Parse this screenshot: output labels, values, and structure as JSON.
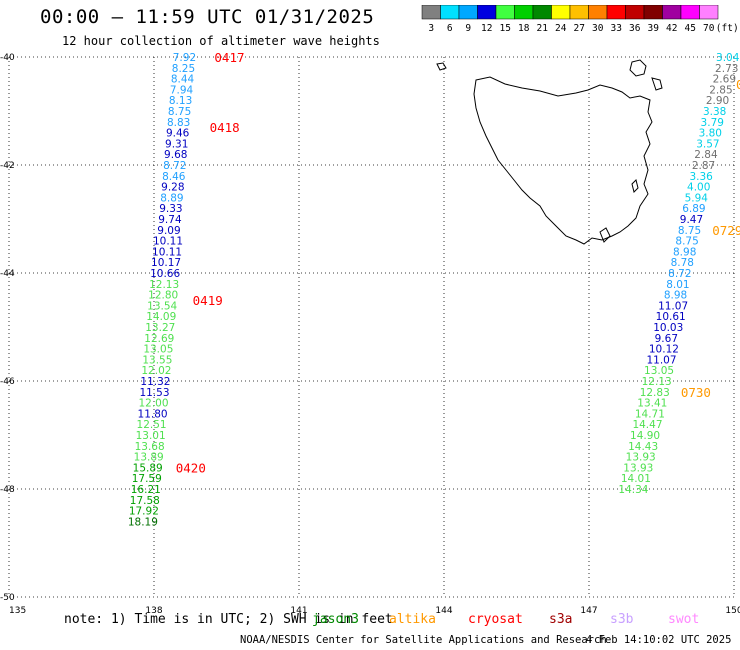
{
  "header": {
    "title": "00:00 – 11:59 UTC 01/31/2025",
    "subtitle": "12 hour collection of altimeter wave heights"
  },
  "colorbar": {
    "bins": [
      {
        "label": "3",
        "color": "#808080"
      },
      {
        "label": "6",
        "color": "#00e0ff"
      },
      {
        "label": "9",
        "color": "#00a8ff"
      },
      {
        "label": "12",
        "color": "#0000e0"
      },
      {
        "label": "15",
        "color": "#40ff40"
      },
      {
        "label": "18",
        "color": "#00d000"
      },
      {
        "label": "21",
        "color": "#008800"
      },
      {
        "label": "24",
        "color": "#ffff00"
      },
      {
        "label": "27",
        "color": "#ffc000"
      },
      {
        "label": "30",
        "color": "#ff8000"
      },
      {
        "label": "33",
        "color": "#ff0000"
      },
      {
        "label": "36",
        "color": "#c00000"
      },
      {
        "label": "39",
        "color": "#800000"
      },
      {
        "label": "42",
        "color": "#a000a0"
      },
      {
        "label": "45",
        "color": "#ff00ff"
      },
      {
        "label": "70",
        "color": "#ff80ff"
      },
      {
        "label": "(ft)",
        "color": "#000000"
      }
    ]
  },
  "chart_data": {
    "type": "scatter",
    "title": "00:00 – 11:59 UTC 01/31/2025",
    "subtitle": "12 hour collection of altimeter wave heights",
    "xlim": [
      135,
      150
    ],
    "ylim": [
      -50,
      -40
    ],
    "x_ticks": [
      "135",
      "138",
      "141",
      "144",
      "147",
      "150"
    ],
    "y_ticks": [
      "-40",
      "-42",
      "-44",
      "-46",
      "-48",
      "-50"
    ],
    "grid": true,
    "units": "ft",
    "tracks": [
      {
        "color_by_value": true,
        "points": [
          {
            "lon": 138.63,
            "lat": -40.0,
            "value": "7.92"
          },
          {
            "lon": 138.61,
            "lat": -40.2,
            "value": "8.25"
          },
          {
            "lon": 138.59,
            "lat": -40.4,
            "value": "8.44"
          },
          {
            "lon": 138.57,
            "lat": -40.6,
            "value": "7.94"
          },
          {
            "lon": 138.55,
            "lat": -40.8,
            "value": "8.13"
          },
          {
            "lon": 138.53,
            "lat": -41.0,
            "value": "8.75"
          },
          {
            "lon": 138.51,
            "lat": -41.2,
            "value": "8.83"
          },
          {
            "lon": 138.49,
            "lat": -41.4,
            "value": "9.46"
          },
          {
            "lon": 138.47,
            "lat": -41.6,
            "value": "9.31"
          },
          {
            "lon": 138.45,
            "lat": -41.8,
            "value": "9.68"
          },
          {
            "lon": 138.43,
            "lat": -42.0,
            "value": "8.72"
          },
          {
            "lon": 138.41,
            "lat": -42.2,
            "value": "8.46"
          },
          {
            "lon": 138.39,
            "lat": -42.4,
            "value": "9.28"
          },
          {
            "lon": 138.37,
            "lat": -42.6,
            "value": "8.89"
          },
          {
            "lon": 138.35,
            "lat": -42.8,
            "value": "9.33"
          },
          {
            "lon": 138.33,
            "lat": -43.0,
            "value": "9.74"
          },
          {
            "lon": 138.31,
            "lat": -43.2,
            "value": "9.09"
          },
          {
            "lon": 138.29,
            "lat": -43.4,
            "value": "10.11"
          },
          {
            "lon": 138.27,
            "lat": -43.6,
            "value": "10.11"
          },
          {
            "lon": 138.25,
            "lat": -43.8,
            "value": "10.17"
          },
          {
            "lon": 138.23,
            "lat": -44.0,
            "value": "10.66"
          },
          {
            "lon": 138.21,
            "lat": -44.2,
            "value": "12.13"
          },
          {
            "lon": 138.19,
            "lat": -44.4,
            "value": "12.80"
          },
          {
            "lon": 138.17,
            "lat": -44.6,
            "value": "13.54"
          },
          {
            "lon": 138.15,
            "lat": -44.8,
            "value": "14.09"
          },
          {
            "lon": 138.13,
            "lat": -45.0,
            "value": "13.27"
          },
          {
            "lon": 138.11,
            "lat": -45.2,
            "value": "12.69"
          },
          {
            "lon": 138.09,
            "lat": -45.4,
            "value": "13.05"
          },
          {
            "lon": 138.07,
            "lat": -45.6,
            "value": "13.55"
          },
          {
            "lon": 138.05,
            "lat": -45.8,
            "value": "12.02"
          },
          {
            "lon": 138.03,
            "lat": -46.0,
            "value": "11.32"
          },
          {
            "lon": 138.01,
            "lat": -46.2,
            "value": "11.53"
          },
          {
            "lon": 137.99,
            "lat": -46.4,
            "value": "12.00"
          },
          {
            "lon": 137.97,
            "lat": -46.6,
            "value": "11.80"
          },
          {
            "lon": 137.95,
            "lat": -46.8,
            "value": "12.51"
          },
          {
            "lon": 137.93,
            "lat": -47.0,
            "value": "13.01"
          },
          {
            "lon": 137.91,
            "lat": -47.2,
            "value": "13.68"
          },
          {
            "lon": 137.89,
            "lat": -47.4,
            "value": "13.89"
          },
          {
            "lon": 137.87,
            "lat": -47.6,
            "value": "15.89"
          },
          {
            "lon": 137.85,
            "lat": -47.8,
            "value": "17.59"
          },
          {
            "lon": 137.83,
            "lat": -48.0,
            "value": "16.21"
          },
          {
            "lon": 137.81,
            "lat": -48.2,
            "value": "17.58"
          },
          {
            "lon": 137.79,
            "lat": -48.4,
            "value": "17.92"
          },
          {
            "lon": 137.77,
            "lat": -48.6,
            "value": "18.19"
          }
        ]
      },
      {
        "color_by_value": true,
        "points": [
          {
            "lon": 149.87,
            "lat": -40.0,
            "value": "3.04"
          },
          {
            "lon": 149.85,
            "lat": -40.2,
            "value": "2.73"
          },
          {
            "lon": 149.8,
            "lat": -40.4,
            "value": "2.69"
          },
          {
            "lon": 149.73,
            "lat": -40.6,
            "value": "2.85"
          },
          {
            "lon": 149.66,
            "lat": -40.8,
            "value": "2.90"
          },
          {
            "lon": 149.6,
            "lat": -41.0,
            "value": "3.38"
          },
          {
            "lon": 149.55,
            "lat": -41.2,
            "value": "3.79"
          },
          {
            "lon": 149.51,
            "lat": -41.4,
            "value": "3.80"
          },
          {
            "lon": 149.46,
            "lat": -41.6,
            "value": "3.57"
          },
          {
            "lon": 149.42,
            "lat": -41.8,
            "value": "2.84"
          },
          {
            "lon": 149.37,
            "lat": -42.0,
            "value": "2.87"
          },
          {
            "lon": 149.32,
            "lat": -42.2,
            "value": "3.36"
          },
          {
            "lon": 149.27,
            "lat": -42.4,
            "value": "4.00"
          },
          {
            "lon": 149.22,
            "lat": -42.6,
            "value": "5.94"
          },
          {
            "lon": 149.17,
            "lat": -42.8,
            "value": "6.89"
          },
          {
            "lon": 149.12,
            "lat": -43.0,
            "value": "9.47"
          },
          {
            "lon": 149.08,
            "lat": -43.2,
            "value": "8.75"
          },
          {
            "lon": 149.03,
            "lat": -43.4,
            "value": "8.75"
          },
          {
            "lon": 148.98,
            "lat": -43.6,
            "value": "8.98"
          },
          {
            "lon": 148.93,
            "lat": -43.8,
            "value": "8.78"
          },
          {
            "lon": 148.88,
            "lat": -44.0,
            "value": "8.72"
          },
          {
            "lon": 148.84,
            "lat": -44.2,
            "value": "8.01"
          },
          {
            "lon": 148.79,
            "lat": -44.4,
            "value": "8.98"
          },
          {
            "lon": 148.74,
            "lat": -44.6,
            "value": "11.07"
          },
          {
            "lon": 148.69,
            "lat": -44.8,
            "value": "10.61"
          },
          {
            "lon": 148.64,
            "lat": -45.0,
            "value": "10.03"
          },
          {
            "lon": 148.6,
            "lat": -45.2,
            "value": "9.67"
          },
          {
            "lon": 148.55,
            "lat": -45.4,
            "value": "10.12"
          },
          {
            "lon": 148.5,
            "lat": -45.6,
            "value": "11.07"
          },
          {
            "lon": 148.45,
            "lat": -45.8,
            "value": "13.05"
          },
          {
            "lon": 148.4,
            "lat": -46.0,
            "value": "12.13"
          },
          {
            "lon": 148.36,
            "lat": -46.2,
            "value": "12.83"
          },
          {
            "lon": 148.31,
            "lat": -46.4,
            "value": "13.41"
          },
          {
            "lon": 148.26,
            "lat": -46.6,
            "value": "14.71"
          },
          {
            "lon": 148.21,
            "lat": -46.8,
            "value": "14.47"
          },
          {
            "lon": 148.16,
            "lat": -47.0,
            "value": "14.90"
          },
          {
            "lon": 148.12,
            "lat": -47.2,
            "value": "14.43"
          },
          {
            "lon": 148.07,
            "lat": -47.4,
            "value": "13.93"
          },
          {
            "lon": 148.02,
            "lat": -47.6,
            "value": "13.93"
          },
          {
            "lon": 147.97,
            "lat": -47.8,
            "value": "14.01"
          },
          {
            "lon": 147.92,
            "lat": -48.0,
            "value": "14.34"
          }
        ]
      }
    ],
    "time_labels": [
      {
        "text": "0417",
        "lon": 139.25,
        "lat": -40.0,
        "color": "#ff0000"
      },
      {
        "text": "0418",
        "lon": 139.15,
        "lat": -41.3,
        "color": "#ff0000"
      },
      {
        "text": "0419",
        "lon": 138.8,
        "lat": -44.5,
        "color": "#ff0000"
      },
      {
        "text": "0420",
        "lon": 138.45,
        "lat": -47.6,
        "color": "#ff0000"
      },
      {
        "text": "0729",
        "lon": 149.55,
        "lat": -43.2,
        "color": "#ff9900"
      },
      {
        "text": "0730",
        "lon": 148.9,
        "lat": -46.2,
        "color": "#ff9900"
      }
    ],
    "clipped_label": {
      "text": "0",
      "color": "#ff9900"
    }
  },
  "footer": {
    "note_prefix": "note: 1) Time is in UTC; 2) SWH is in feet",
    "satellites": [
      {
        "name": "jason3",
        "color": "#008800"
      },
      {
        "name": "altika",
        "color": "#ff9900"
      },
      {
        "name": "cryosat",
        "color": "#ff0000"
      },
      {
        "name": "s3a",
        "color": "#a00000"
      },
      {
        "name": "s3b",
        "color": "#c8a0ff"
      },
      {
        "name": "swot",
        "color": "#ff88ff"
      }
    ],
    "credit": "NOAA/NESDIS Center for Satellite Applications and Research",
    "timestamp": "4 Feb 14:10:02 UTC 2025"
  }
}
